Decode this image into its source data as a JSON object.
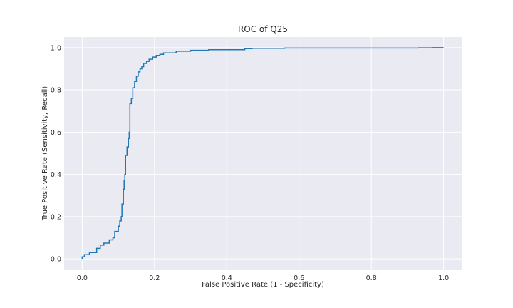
{
  "chart_data": {
    "type": "line",
    "title": "ROC of Q25",
    "xlabel": "False Positive Rate (1 - Specificity)",
    "ylabel": "True Positive Rate (Sensitivity, Recall)",
    "xlim": [
      -0.05,
      1.05
    ],
    "ylim": [
      -0.05,
      1.05
    ],
    "xticks": [
      "0.0",
      "0.2",
      "0.4",
      "0.6",
      "0.8",
      "1.0"
    ],
    "yticks": [
      "0.0",
      "0.2",
      "0.4",
      "0.6",
      "0.8",
      "1.0"
    ],
    "grid": true,
    "series": [
      {
        "color": "#1f77b4",
        "x": [
          0.0,
          0.0,
          0.006,
          0.006,
          0.02,
          0.02,
          0.04,
          0.04,
          0.05,
          0.05,
          0.06,
          0.06,
          0.075,
          0.075,
          0.085,
          0.085,
          0.09,
          0.09,
          0.1,
          0.1,
          0.104,
          0.104,
          0.108,
          0.108,
          0.11,
          0.11,
          0.114,
          0.114,
          0.116,
          0.116,
          0.118,
          0.118,
          0.12,
          0.12,
          0.124,
          0.124,
          0.128,
          0.128,
          0.13,
          0.13,
          0.132,
          0.132,
          0.136,
          0.136,
          0.14,
          0.14,
          0.145,
          0.145,
          0.15,
          0.15,
          0.155,
          0.155,
          0.16,
          0.16,
          0.165,
          0.165,
          0.17,
          0.17,
          0.178,
          0.178,
          0.185,
          0.185,
          0.195,
          0.195,
          0.205,
          0.205,
          0.215,
          0.215,
          0.225,
          0.225,
          0.26,
          0.26,
          0.3,
          0.3,
          0.35,
          0.35,
          0.45,
          0.45,
          0.47,
          0.47,
          0.56,
          0.56,
          0.93,
          0.93,
          0.97,
          0.97,
          1.0
        ],
        "y": [
          0.0,
          0.01,
          0.01,
          0.02,
          0.02,
          0.03,
          0.03,
          0.05,
          0.05,
          0.065,
          0.065,
          0.075,
          0.075,
          0.09,
          0.09,
          0.1,
          0.1,
          0.13,
          0.13,
          0.155,
          0.155,
          0.18,
          0.18,
          0.2,
          0.2,
          0.26,
          0.26,
          0.33,
          0.33,
          0.37,
          0.37,
          0.4,
          0.4,
          0.49,
          0.49,
          0.53,
          0.53,
          0.57,
          0.57,
          0.6,
          0.6,
          0.735,
          0.735,
          0.76,
          0.76,
          0.81,
          0.81,
          0.84,
          0.84,
          0.865,
          0.865,
          0.885,
          0.885,
          0.9,
          0.9,
          0.91,
          0.91,
          0.925,
          0.925,
          0.935,
          0.935,
          0.945,
          0.945,
          0.955,
          0.955,
          0.963,
          0.963,
          0.968,
          0.968,
          0.975,
          0.975,
          0.983,
          0.983,
          0.987,
          0.987,
          0.99,
          0.99,
          0.995,
          0.995,
          0.997,
          0.997,
          0.998,
          0.998,
          0.999,
          0.999,
          1.0,
          1.0
        ]
      }
    ]
  }
}
